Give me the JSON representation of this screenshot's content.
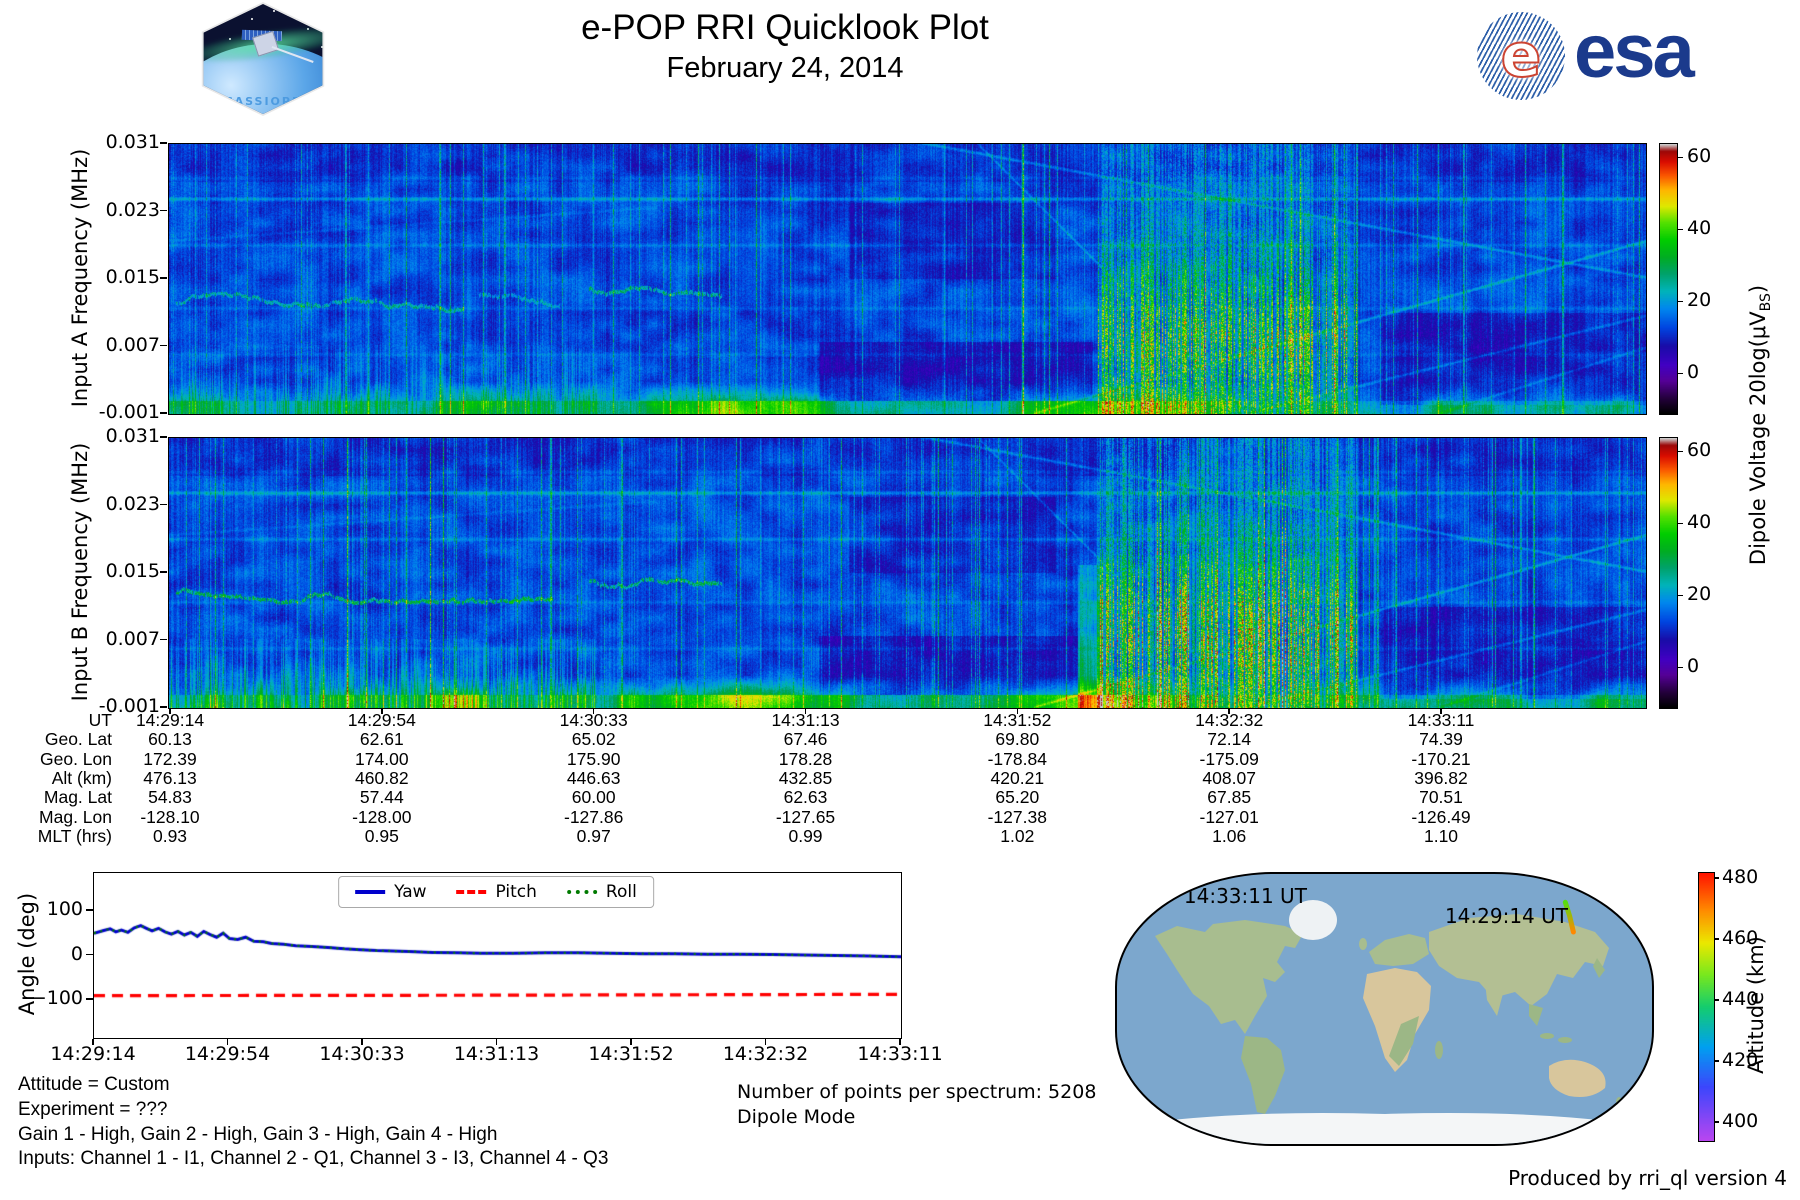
{
  "header": {
    "title": "e-POP RRI Quicklook Plot",
    "date": "February 24, 2014",
    "patch_label": "CASSIOPE",
    "esa_text": "esa"
  },
  "colors": {
    "yaw_blue": "#0000cc",
    "pitch_red": "#ff0000",
    "roll_green": "#007a00",
    "esa_navy": "#1b3a8c",
    "ocean_blue": "#7ca7cd"
  },
  "ephemeris": {
    "row_labels": [
      "UT",
      "Geo. Lat",
      "Geo. Lon",
      "Alt (km)",
      "Mag. Lat",
      "Mag. Lon",
      "MLT (hrs)"
    ],
    "columns": [
      [
        "14:29:14",
        "60.13",
        "172.39",
        "476.13",
        "54.83",
        "-128.10",
        "0.93"
      ],
      [
        "14:29:54",
        "62.61",
        "174.00",
        "460.82",
        "57.44",
        "-128.00",
        "0.95"
      ],
      [
        "14:30:33",
        "65.02",
        "175.90",
        "446.63",
        "60.00",
        "-127.86",
        "0.97"
      ],
      [
        "14:31:13",
        "67.46",
        "178.28",
        "432.85",
        "62.63",
        "-127.65",
        "0.99"
      ],
      [
        "14:31:52",
        "69.80",
        "-178.84",
        "420.21",
        "65.20",
        "-127.38",
        "1.02"
      ],
      [
        "14:32:32",
        "72.14",
        "-175.09",
        "408.07",
        "67.85",
        "-127.01",
        "1.06"
      ],
      [
        "14:33:11",
        "74.39",
        "-170.21",
        "396.82",
        "70.51",
        "-126.49",
        "1.10"
      ]
    ]
  },
  "info": {
    "attitude": "Attitude = Custom",
    "experiment": "Experiment = ???",
    "gains": "Gain 1 - High, Gain 2 - High, Gain 3 - High, Gain 4 - High",
    "inputs": "Inputs: Channel 1 - I1, Channel 2 - Q1, Channel 3 - I3, Channel 4 - Q3",
    "num_points": "Number of points per spectrum: 5208",
    "mode": "Dipole Mode"
  },
  "footer": {
    "produced_by": "Produced by rri_ql version 4"
  },
  "chart_data": [
    {
      "id": "specA",
      "type": "heatmap",
      "ylabel": "Input A Frequency (MHz)",
      "yticks": [
        "0.031",
        "0.023",
        "0.015",
        "0.007",
        "-0.001"
      ],
      "ytick_values": [
        0.031,
        0.023,
        0.015,
        0.007,
        -0.001
      ],
      "ylim": [
        -0.001,
        0.031
      ],
      "x_time_range": [
        "14:29:14",
        "14:33:11"
      ],
      "colorbar": {
        "ticks": [
          60,
          40,
          20,
          0
        ],
        "range": [
          -11,
          64
        ],
        "label": "Dipole Voltage 20log(μV_BS)",
        "label_parts": [
          "Dipole Voltage 20log(μV",
          "BS",
          ")"
        ],
        "colormap": "nipy_spectral"
      },
      "features": {
        "seed": 11,
        "hlines": [
          {
            "f": 0.0245,
            "a": 8
          },
          {
            "f": 0.019,
            "a": 4
          },
          {
            "f": 0.0115,
            "a": 3
          },
          {
            "f": 0.027,
            "a": 2.5
          },
          {
            "f": 0.006,
            "a": 2.5
          }
        ],
        "squiggles": [
          {
            "x0": 0.005,
            "x1": 0.2,
            "f": 0.0122,
            "a": 13
          },
          {
            "x0": 0.21,
            "x1": 0.265,
            "f": 0.0128,
            "a": 9
          },
          {
            "x0": 0.285,
            "x1": 0.375,
            "f": 0.0138,
            "a": 15
          }
        ],
        "low_streaks": {
          "x1": 0.29,
          "fmax": 0.0072,
          "a": 9
        },
        "walls": [],
        "burst": {
          "x0": 0.628,
          "x1": 0.805,
          "a": 24
        },
        "impulses": 110,
        "bottom": {
          "a": 15,
          "blobs": [
            {
              "x0": 0.29,
              "x1": 0.47,
              "a": 16
            },
            {
              "x0": 0.56,
              "x1": 0.7,
              "a": 13
            },
            {
              "x0": 0.17,
              "x1": 0.23,
              "a": 9
            }
          ]
        },
        "diags": [
          {
            "x0": 0.5,
            "f0": 0.0315,
            "x1": 1.02,
            "f1": 0.0145,
            "a": 7
          },
          {
            "x0": 0.585,
            "f0": -0.001,
            "x1": 1.02,
            "f1": 0.0205,
            "a": 8
          },
          {
            "x0": 0.545,
            "f0": 0.0315,
            "x1": 0.73,
            "f1": -0.001,
            "a": 6
          },
          {
            "x0": 0.73,
            "f0": -0.001,
            "x1": 1.02,
            "f1": 0.0115,
            "a": 6
          },
          {
            "x0": 0.86,
            "f0": -0.001,
            "x1": 1.02,
            "f1": 0.008,
            "a": 5
          },
          {
            "x0": 0.0,
            "f0": 0.0195,
            "x1": 0.33,
            "f1": 0.0235,
            "a": 2.5
          }
        ],
        "patches": [
          {
            "x0": 0.44,
            "x1": 0.625,
            "f0": 0.0005,
            "f1": 0.0075,
            "d": -5
          },
          {
            "x0": 0.82,
            "x1": 1.0,
            "f0": 0.0,
            "f1": 0.011,
            "d": -4
          },
          {
            "x0": 0.46,
            "x1": 0.6,
            "f0": 0.015,
            "f1": 0.024,
            "d": -3
          }
        ]
      }
    },
    {
      "id": "specB",
      "type": "heatmap",
      "ylabel": "Input B Frequency (MHz)",
      "yticks": [
        "0.031",
        "0.023",
        "0.015",
        "0.007",
        "-0.001"
      ],
      "ytick_values": [
        0.031,
        0.023,
        0.015,
        0.007,
        -0.001
      ],
      "ylim": [
        -0.001,
        0.031
      ],
      "x_time_range": [
        "14:29:14",
        "14:33:11"
      ],
      "colorbar": {
        "ticks": [
          60,
          40,
          20,
          0
        ],
        "range": [
          -11,
          64
        ],
        "label": "Dipole Voltage 20log(μV_BS)",
        "label_parts": [
          "Dipole Voltage 20log(μV",
          "BS",
          ")"
        ],
        "colormap": "nipy_spectral"
      },
      "features": {
        "seed": 77,
        "hlines": [
          {
            "f": 0.0245,
            "a": 8
          },
          {
            "f": 0.019,
            "a": 4.5
          },
          {
            "f": 0.0115,
            "a": 3
          },
          {
            "f": 0.027,
            "a": 2.5
          },
          {
            "f": 0.006,
            "a": 3
          }
        ],
        "squiggles": [
          {
            "x0": 0.005,
            "x1": 0.26,
            "f": 0.0125,
            "a": 18
          },
          {
            "x0": 0.285,
            "x1": 0.375,
            "f": 0.0138,
            "a": 17
          }
        ],
        "low_streaks": {
          "x1": 0.29,
          "fmax": 0.0072,
          "a": 16
        },
        "walls": [
          {
            "x0": 0.615,
            "x1": 0.632,
            "fmax": 0.016,
            "a": 17
          }
        ],
        "burst": {
          "x0": 0.628,
          "x1": 0.805,
          "a": 28
        },
        "impulses": 160,
        "bottom": {
          "a": 17,
          "blobs": [
            {
              "x0": 0.29,
              "x1": 0.47,
              "a": 16
            },
            {
              "x0": 0.56,
              "x1": 0.7,
              "a": 14
            },
            {
              "x0": 0.17,
              "x1": 0.23,
              "a": 10
            }
          ]
        },
        "diags": [
          {
            "x0": 0.5,
            "f0": 0.0315,
            "x1": 1.02,
            "f1": 0.0145,
            "a": 7
          },
          {
            "x0": 0.585,
            "f0": -0.001,
            "x1": 1.02,
            "f1": 0.0205,
            "a": 8
          },
          {
            "x0": 0.545,
            "f0": 0.0315,
            "x1": 0.73,
            "f1": -0.001,
            "a": 6
          },
          {
            "x0": 0.73,
            "f0": -0.001,
            "x1": 1.02,
            "f1": 0.0115,
            "a": 6
          },
          {
            "x0": 0.86,
            "f0": -0.001,
            "x1": 1.02,
            "f1": 0.008,
            "a": 5
          },
          {
            "x0": 0.0,
            "f0": 0.0195,
            "x1": 0.33,
            "f1": 0.0235,
            "a": 2.5
          }
        ],
        "patches": [
          {
            "x0": 0.44,
            "x1": 0.615,
            "f0": 0.0005,
            "f1": 0.0075,
            "d": -5
          },
          {
            "x0": 0.82,
            "x1": 1.0,
            "f0": 0.0,
            "f1": 0.011,
            "d": -4
          },
          {
            "x0": 0.46,
            "x1": 0.6,
            "f0": 0.015,
            "f1": 0.024,
            "d": -3
          }
        ]
      }
    },
    {
      "id": "angle",
      "type": "line",
      "ylabel": "Angle (deg)",
      "yticks": [
        100,
        0,
        -100
      ],
      "ylim": [
        -185,
        185
      ],
      "xticks": [
        "14:29:14",
        "14:29:54",
        "14:30:33",
        "14:31:13",
        "14:31:52",
        "14:32:32",
        "14:33:11"
      ],
      "legend": [
        "Yaw",
        "Pitch",
        "Roll"
      ],
      "series": [
        {
          "name": "Yaw",
          "style": "solid",
          "color": "#0000cc",
          "points": [
            [
              0,
              50
            ],
            [
              0.012,
              56
            ],
            [
              0.02,
              60
            ],
            [
              0.027,
              53
            ],
            [
              0.034,
              57
            ],
            [
              0.042,
              52
            ],
            [
              0.05,
              62
            ],
            [
              0.058,
              67
            ],
            [
              0.065,
              61
            ],
            [
              0.072,
              55
            ],
            [
              0.08,
              61
            ],
            [
              0.088,
              53
            ],
            [
              0.096,
              48
            ],
            [
              0.104,
              54
            ],
            [
              0.112,
              46
            ],
            [
              0.12,
              52
            ],
            [
              0.128,
              43
            ],
            [
              0.136,
              54
            ],
            [
              0.144,
              47
            ],
            [
              0.152,
              41
            ],
            [
              0.16,
              50
            ],
            [
              0.168,
              38
            ],
            [
              0.178,
              36
            ],
            [
              0.188,
              41
            ],
            [
              0.198,
              32
            ],
            [
              0.21,
              31
            ],
            [
              0.22,
              27
            ],
            [
              0.235,
              25
            ],
            [
              0.25,
              22
            ],
            [
              0.27,
              20
            ],
            [
              0.29,
              18
            ],
            [
              0.31,
              15
            ],
            [
              0.33,
              13
            ],
            [
              0.35,
              11
            ],
            [
              0.37,
              10
            ],
            [
              0.39,
              9
            ],
            [
              0.42,
              7
            ],
            [
              0.45,
              6
            ],
            [
              0.48,
              5
            ],
            [
              0.52,
              5
            ],
            [
              0.56,
              6
            ],
            [
              0.6,
              6
            ],
            [
              0.64,
              5
            ],
            [
              0.68,
              4
            ],
            [
              0.72,
              4
            ],
            [
              0.76,
              3
            ],
            [
              0.8,
              3
            ],
            [
              0.84,
              2
            ],
            [
              0.88,
              1
            ],
            [
              0.92,
              0
            ],
            [
              0.96,
              -1
            ],
            [
              1,
              -3
            ]
          ]
        },
        {
          "name": "Pitch",
          "style": "dashed",
          "color": "#ff0000",
          "points": [
            [
              0,
              -90
            ],
            [
              0.5,
              -89
            ],
            [
              1,
              -87
            ]
          ]
        },
        {
          "name": "Roll",
          "style": "dotted",
          "color": "#007a00",
          "same_as": "Yaw"
        }
      ]
    },
    {
      "id": "map",
      "type": "map",
      "labels": [
        {
          "text": "14:33:11 UT",
          "x": 0.125,
          "y": 0.037
        },
        {
          "text": "14:29:14 UT",
          "x": 0.613,
          "y": 0.111
        }
      ],
      "tracks": [
        {
          "name": "pass-end-track",
          "points": [
            [
              0.062,
              0.1
            ],
            [
              0.093,
              0.072
            ],
            [
              0.122,
              0.052
            ]
          ],
          "colors": [
            "#7733ee",
            "#4433cc"
          ]
        },
        {
          "name": "pass-start-track",
          "points": [
            [
              0.838,
              0.105
            ],
            [
              0.846,
              0.155
            ],
            [
              0.853,
              0.215
            ]
          ],
          "colors": [
            "#55dd11",
            "#ff8800"
          ]
        }
      ],
      "colorbar": {
        "label": "Altitude (km)",
        "ticks": [
          480,
          460,
          440,
          420,
          400
        ],
        "range": [
          394,
          482
        ],
        "colormap": "rainbow"
      }
    }
  ],
  "palettes": {
    "nipy_spectral": [
      [
        0,
        [
          0,
          0,
          0
        ]
      ],
      [
        0.055,
        [
          35,
          0,
          58
        ]
      ],
      [
        0.12,
        [
          85,
          0,
          150
        ]
      ],
      [
        0.18,
        [
          65,
          0,
          195
        ]
      ],
      [
        0.25,
        [
          25,
          12,
          168
        ]
      ],
      [
        0.32,
        [
          0,
          70,
          225
        ]
      ],
      [
        0.39,
        [
          0,
          135,
          238
        ]
      ],
      [
        0.455,
        [
          0,
          180,
          185
        ]
      ],
      [
        0.52,
        [
          0,
          162,
          105
        ]
      ],
      [
        0.58,
        [
          0,
          172,
          35
        ]
      ],
      [
        0.645,
        [
          0,
          205,
          0
        ]
      ],
      [
        0.71,
        [
          85,
          225,
          0
        ]
      ],
      [
        0.77,
        [
          222,
          232,
          0
        ]
      ],
      [
        0.83,
        [
          255,
          182,
          0
        ]
      ],
      [
        0.885,
        [
          250,
          85,
          0
        ]
      ],
      [
        0.935,
        [
          218,
          12,
          0
        ]
      ],
      [
        0.975,
        [
          155,
          8,
          8
        ]
      ],
      [
        1,
        [
          204,
          204,
          204
        ]
      ]
    ],
    "rainbow": [
      [
        0,
        [
          185,
          70,
          240
        ]
      ],
      [
        0.2,
        [
          60,
          70,
          252
        ]
      ],
      [
        0.35,
        [
          0,
          160,
          240
        ]
      ],
      [
        0.5,
        [
          20,
          205,
          110
        ]
      ],
      [
        0.62,
        [
          120,
          232,
          30
        ]
      ],
      [
        0.74,
        [
          235,
          232,
          0
        ]
      ],
      [
        0.86,
        [
          255,
          140,
          0
        ]
      ],
      [
        1,
        [
          255,
          20,
          0
        ]
      ]
    ]
  }
}
